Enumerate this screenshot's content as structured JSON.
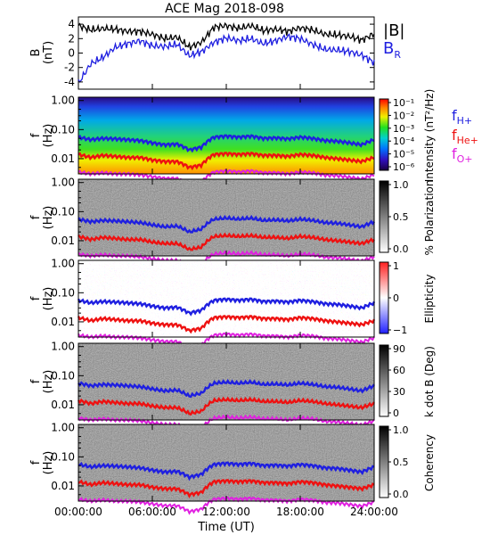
{
  "figure": {
    "title": "ACE Mag 2018-098",
    "xlabel": "Time (UT)",
    "xticks": [
      "00:00:00",
      "06:00:00",
      "12:00:00",
      "18:00:00",
      "24:00:00"
    ]
  },
  "colors": {
    "B_total": "#000000",
    "B_R": "#1f1fe0",
    "f_H": "#1f1fe0",
    "f_He": "#ee1111",
    "f_O": "#e020e0"
  },
  "chart_data": [
    {
      "type": "line",
      "panel": "field",
      "ylabel": "B (nT)",
      "ylim": [
        -5,
        5
      ],
      "yticks": [
        "4",
        "2",
        "0",
        "-2",
        "-4"
      ],
      "legend": [
        "|B|",
        "B_R"
      ],
      "x_hours": [
        0,
        1,
        2,
        3,
        4,
        5,
        6,
        7,
        8,
        9,
        10,
        11,
        12,
        13,
        14,
        15,
        16,
        17,
        18,
        19,
        20,
        21,
        22,
        23,
        24
      ],
      "series": [
        {
          "name": "|B|",
          "values": [
            3.8,
            3.2,
            3.4,
            3.3,
            3.0,
            3.0,
            2.6,
            2.0,
            2.2,
            0.8,
            1.5,
            3.6,
            3.8,
            3.4,
            3.8,
            3.1,
            3.3,
            3.0,
            3.5,
            3.2,
            2.6,
            2.5,
            2.3,
            1.8,
            2.7
          ]
        },
        {
          "name": "B_R",
          "values": [
            -4.2,
            -1.5,
            -0.6,
            0.8,
            1.3,
            1.7,
            1.0,
            0.9,
            1.2,
            -0.4,
            0.2,
            1.5,
            2.1,
            1.7,
            2.0,
            1.3,
            1.7,
            2.3,
            2.0,
            1.2,
            0.5,
            0.4,
            0.2,
            -0.3,
            -1.3
          ]
        }
      ]
    },
    {
      "type": "heatmap",
      "panel": "intensity",
      "ylabel": "f (Hz)",
      "yticks": [
        "1.00",
        "0.10",
        "0.01"
      ],
      "colorbar_label": "Intensity (nT²/Hz)",
      "colorbar_ticks": [
        "10⁻¹",
        "10⁻²",
        "10⁻³",
        "10⁻⁴",
        "10⁻⁵",
        "10⁻⁶"
      ],
      "legend": [
        "f_H+",
        "f_He+",
        "f_O+"
      ]
    },
    {
      "type": "heatmap",
      "panel": "polarization",
      "ylabel": "f (Hz)",
      "yticks": [
        "1.00",
        "0.10",
        "0.01"
      ],
      "colorbar_label": "% Polarization",
      "colorbar_ticks": [
        "1.0",
        "0.5",
        "0.0"
      ]
    },
    {
      "type": "heatmap",
      "panel": "ellipticity",
      "ylabel": "f (Hz)",
      "yticks": [
        "1.00",
        "0.10",
        "0.01"
      ],
      "colorbar_label": "Ellipticity",
      "colorbar_ticks": [
        "1",
        "0",
        "−1"
      ]
    },
    {
      "type": "heatmap",
      "panel": "kdotb",
      "ylabel": "f (Hz)",
      "yticks": [
        "1.00",
        "0.10",
        "0.01"
      ],
      "colorbar_label": "k dot B (Deg)",
      "colorbar_ticks": [
        "90",
        "60",
        "30",
        "0"
      ]
    },
    {
      "type": "heatmap",
      "panel": "coherency",
      "ylabel": "f (Hz)",
      "yticks": [
        "1.00",
        "0.10",
        "0.01"
      ],
      "colorbar_label": "Coherency",
      "colorbar_ticks": [
        "1.0",
        "0.5",
        "0.0"
      ]
    }
  ],
  "gyrofrequency_lines": {
    "x_hours": [
      0,
      1,
      2,
      3,
      4,
      5,
      6,
      7,
      8,
      9,
      10,
      11,
      12,
      13,
      14,
      15,
      16,
      17,
      18,
      19,
      20,
      21,
      22,
      23,
      24
    ],
    "f_H_hz": [
      0.055,
      0.045,
      0.05,
      0.048,
      0.045,
      0.042,
      0.035,
      0.03,
      0.032,
      0.02,
      0.025,
      0.055,
      0.06,
      0.055,
      0.06,
      0.05,
      0.052,
      0.048,
      0.055,
      0.05,
      0.042,
      0.04,
      0.035,
      0.03,
      0.045
    ],
    "f_He_hz": [
      0.014,
      0.011,
      0.013,
      0.012,
      0.011,
      0.011,
      0.009,
      0.008,
      0.008,
      0.005,
      0.006,
      0.014,
      0.015,
      0.014,
      0.015,
      0.013,
      0.013,
      0.012,
      0.014,
      0.013,
      0.011,
      0.01,
      0.009,
      0.008,
      0.011
    ],
    "f_O_hz": [
      0.0035,
      0.003,
      0.0033,
      0.003,
      0.003,
      0.0028,
      0.0024,
      0.0021,
      0.0021,
      0.0013,
      0.0016,
      0.0035,
      0.0038,
      0.0035,
      0.0038,
      0.0033,
      0.0033,
      0.003,
      0.0035,
      0.0033,
      0.0027,
      0.0026,
      0.0023,
      0.002,
      0.0028
    ]
  }
}
